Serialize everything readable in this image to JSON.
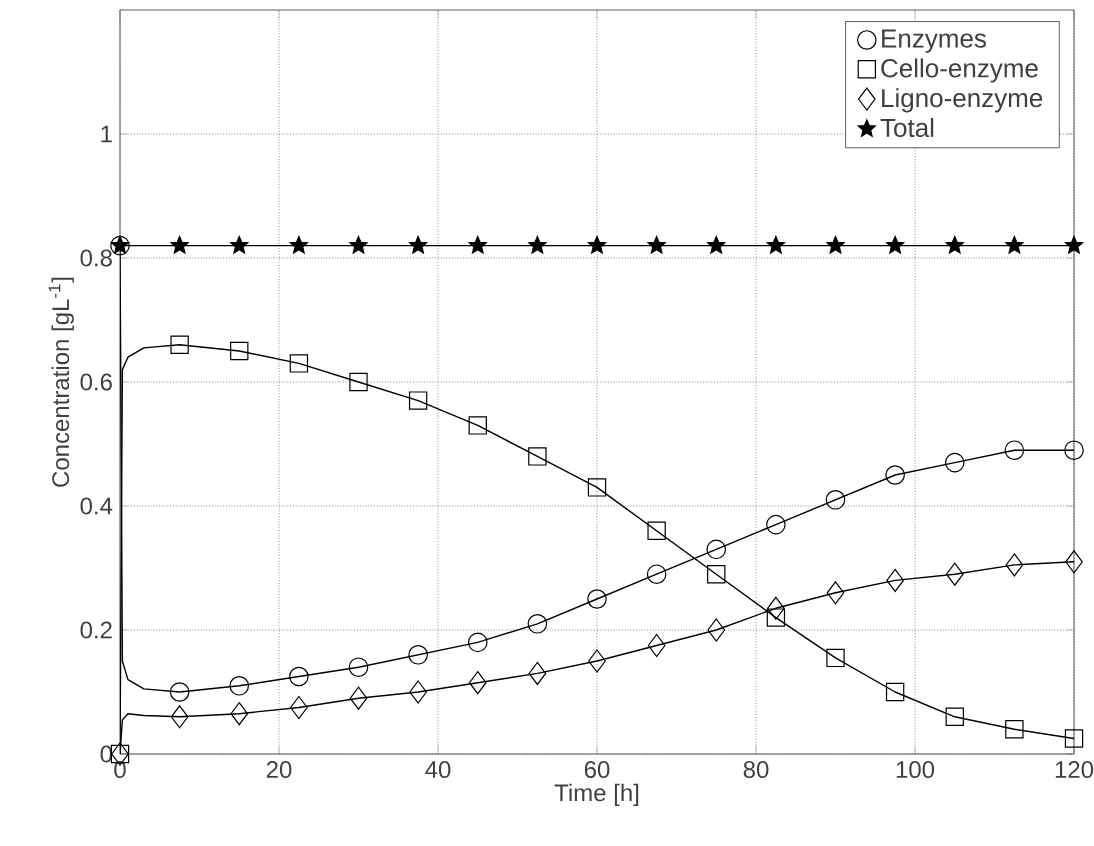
{
  "chart_data": {
    "type": "scatter",
    "xlabel": "Time [h]",
    "ylabel": "Concentration [gL$^{-1}$]",
    "xlim": [
      0,
      120
    ],
    "ylim": [
      0,
      1.2
    ],
    "xticks": [
      0,
      20,
      40,
      60,
      80,
      100,
      120
    ],
    "yticks": [
      0,
      0.2,
      0.4,
      0.6,
      0.8,
      1
    ],
    "grid": true,
    "legend": "top right",
    "x": [
      0,
      7.5,
      15,
      22.5,
      30,
      37.5,
      45,
      52.5,
      60,
      67.5,
      75,
      82.5,
      90,
      97.5,
      105,
      112.5,
      120
    ],
    "series": [
      {
        "name": "Enzymes",
        "color": "#000000",
        "marker": "circle",
        "values": [
          0.82,
          0.1,
          0.11,
          0.125,
          0.14,
          0.16,
          0.18,
          0.21,
          0.25,
          0.29,
          0.33,
          0.37,
          0.41,
          0.45,
          0.47,
          0.49,
          0.49
        ]
      },
      {
        "name": "Cello-enzyme",
        "color": "#000000",
        "marker": "square",
        "values": [
          0,
          0.66,
          0.65,
          0.63,
          0.6,
          0.57,
          0.53,
          0.48,
          0.43,
          0.36,
          0.29,
          0.22,
          0.155,
          0.1,
          0.06,
          0.04,
          0.025
        ]
      },
      {
        "name": "Ligno-enzyme",
        "color": "#000000",
        "marker": "diamond",
        "values": [
          0,
          0.06,
          0.065,
          0.075,
          0.09,
          0.1,
          0.115,
          0.13,
          0.15,
          0.175,
          0.2,
          0.235,
          0.26,
          0.28,
          0.29,
          0.305,
          0.31
        ]
      },
      {
        "name": "Total",
        "color": "#000000",
        "marker": "star",
        "values": [
          0.82,
          0.82,
          0.82,
          0.82,
          0.82,
          0.82,
          0.82,
          0.82,
          0.82,
          0.82,
          0.82,
          0.82,
          0.82,
          0.82,
          0.82,
          0.82,
          0.82
        ]
      },
      {
        "type": "line",
        "color": "#000000",
        "x": [
          0,
          0.3,
          1,
          3,
          7.5,
          15,
          22.5,
          30,
          37.5,
          45,
          52.5,
          60,
          67.5,
          75,
          82.5,
          90,
          97.5,
          105,
          112.5,
          120
        ],
        "values": [
          0.82,
          0.15,
          0.12,
          0.105,
          0.1,
          0.11,
          0.125,
          0.14,
          0.16,
          0.18,
          0.21,
          0.25,
          0.29,
          0.33,
          0.37,
          0.41,
          0.45,
          0.47,
          0.49,
          0.49
        ]
      },
      {
        "type": "line",
        "color": "#000000",
        "x": [
          0,
          0.3,
          1,
          3,
          7.5,
          15,
          22.5,
          30,
          37.5,
          45,
          52.5,
          60,
          67.5,
          75,
          82.5,
          90,
          97.5,
          105,
          112.5,
          120
        ],
        "values": [
          0,
          0.62,
          0.64,
          0.655,
          0.66,
          0.65,
          0.63,
          0.6,
          0.57,
          0.53,
          0.48,
          0.43,
          0.36,
          0.29,
          0.22,
          0.155,
          0.1,
          0.06,
          0.04,
          0.025
        ]
      },
      {
        "type": "line",
        "color": "#000000",
        "x": [
          0,
          0.3,
          1,
          3,
          7.5,
          15,
          22.5,
          30,
          37.5,
          45,
          52.5,
          60,
          67.5,
          75,
          82.5,
          90,
          97.5,
          105,
          112.5,
          120
        ],
        "values": [
          0,
          0.055,
          0.065,
          0.062,
          0.06,
          0.065,
          0.075,
          0.09,
          0.1,
          0.115,
          0.13,
          0.15,
          0.175,
          0.2,
          0.235,
          0.26,
          0.28,
          0.29,
          0.305,
          0.31
        ]
      },
      {
        "type": "line",
        "color": "#000000",
        "x": [
          0,
          120
        ],
        "values": [
          0.82,
          0.82
        ]
      }
    ]
  }
}
